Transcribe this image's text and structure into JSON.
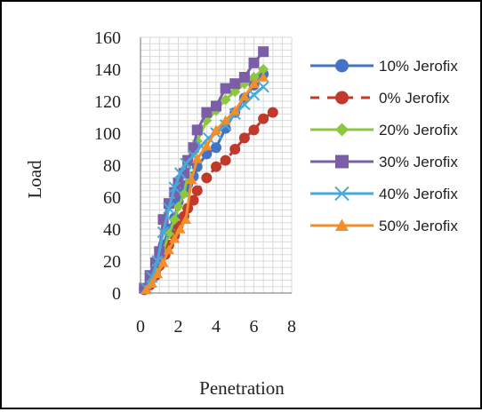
{
  "chart_data": {
    "type": "scatter",
    "xlabel": "Penetration",
    "ylabel": "Load",
    "xlim": [
      0,
      8
    ],
    "ylim": [
      0,
      160
    ],
    "x_ticks": [
      "0",
      "2",
      "4",
      "6",
      "8"
    ],
    "y_ticks": [
      "0",
      "20",
      "40",
      "60",
      "80",
      "100",
      "120",
      "140",
      "160"
    ],
    "grid": true,
    "legend_position": "right",
    "series": [
      {
        "name": "10% Jerofix",
        "color": "#4472C4",
        "marker": "circle",
        "line": "solid",
        "points": [
          [
            0.2,
            3
          ],
          [
            0.5,
            7
          ],
          [
            0.8,
            14
          ],
          [
            1.0,
            22
          ],
          [
            1.2,
            30
          ],
          [
            1.5,
            40
          ],
          [
            1.8,
            47
          ],
          [
            2.0,
            57
          ],
          [
            2.3,
            63
          ],
          [
            2.5,
            68
          ],
          [
            2.8,
            73
          ],
          [
            3.0,
            79
          ],
          [
            3.5,
            87
          ],
          [
            4.0,
            91
          ],
          [
            4.5,
            103
          ],
          [
            5.0,
            113
          ],
          [
            5.5,
            122
          ],
          [
            6.0,
            130
          ],
          [
            6.5,
            137
          ]
        ]
      },
      {
        "name": "0% Jerofix",
        "color": "#C0392B",
        "marker": "circle",
        "line": "dashed",
        "points": [
          [
            0.2,
            2
          ],
          [
            0.5,
            5
          ],
          [
            0.8,
            11
          ],
          [
            1.0,
            17
          ],
          [
            1.3,
            24
          ],
          [
            1.5,
            30
          ],
          [
            1.8,
            36
          ],
          [
            2.0,
            42
          ],
          [
            2.3,
            48
          ],
          [
            2.5,
            53
          ],
          [
            2.8,
            58
          ],
          [
            3.0,
            64
          ],
          [
            3.5,
            72
          ],
          [
            4.0,
            79
          ],
          [
            4.5,
            83
          ],
          [
            5.0,
            90
          ],
          [
            5.5,
            97
          ],
          [
            6.0,
            102
          ],
          [
            6.5,
            109
          ],
          [
            7.0,
            113
          ]
        ]
      },
      {
        "name": "20% Jerofix",
        "color": "#8DC63F",
        "marker": "diamond",
        "line": "solid",
        "points": [
          [
            0.3,
            3
          ],
          [
            0.6,
            8
          ],
          [
            0.9,
            16
          ],
          [
            1.2,
            26
          ],
          [
            1.5,
            37
          ],
          [
            1.8,
            46
          ],
          [
            2.0,
            54
          ],
          [
            2.3,
            62
          ],
          [
            2.5,
            74
          ],
          [
            2.8,
            88
          ],
          [
            3.0,
            95
          ],
          [
            3.5,
            108
          ],
          [
            4.0,
            114
          ],
          [
            4.5,
            121
          ],
          [
            5.0,
            126
          ],
          [
            5.5,
            131
          ],
          [
            6.0,
            135
          ],
          [
            6.5,
            140
          ]
        ]
      },
      {
        "name": "30% Jerofix",
        "color": "#7B5EA7",
        "marker": "square",
        "line": "solid",
        "points": [
          [
            0.2,
            3
          ],
          [
            0.5,
            11
          ],
          [
            0.8,
            19
          ],
          [
            1.0,
            26
          ],
          [
            1.2,
            46
          ],
          [
            1.5,
            56
          ],
          [
            1.8,
            63
          ],
          [
            2.0,
            69
          ],
          [
            2.3,
            75
          ],
          [
            2.5,
            83
          ],
          [
            2.8,
            91
          ],
          [
            3.0,
            102
          ],
          [
            3.5,
            113
          ],
          [
            4.0,
            117
          ],
          [
            4.5,
            128
          ],
          [
            5.0,
            131
          ],
          [
            5.5,
            135
          ],
          [
            6.0,
            144
          ],
          [
            6.5,
            151
          ]
        ]
      },
      {
        "name": "40% Jerofix",
        "color": "#45A9D9",
        "marker": "x",
        "line": "solid",
        "points": [
          [
            0.3,
            3
          ],
          [
            0.6,
            10
          ],
          [
            0.9,
            20
          ],
          [
            1.2,
            38
          ],
          [
            1.5,
            53
          ],
          [
            1.8,
            66
          ],
          [
            2.1,
            75
          ],
          [
            2.4,
            81
          ],
          [
            2.8,
            86
          ],
          [
            3.2,
            92
          ],
          [
            3.6,
            97
          ],
          [
            4.0,
            100
          ],
          [
            4.5,
            105
          ],
          [
            5.0,
            112
          ],
          [
            5.5,
            118
          ],
          [
            6.0,
            124
          ],
          [
            6.5,
            129
          ]
        ]
      },
      {
        "name": "50% Jerofix",
        "color": "#F28E2B",
        "marker": "triangle",
        "line": "solid",
        "points": [
          [
            0.3,
            2
          ],
          [
            0.6,
            6
          ],
          [
            0.9,
            12
          ],
          [
            1.2,
            19
          ],
          [
            1.5,
            27
          ],
          [
            1.8,
            34
          ],
          [
            2.1,
            40
          ],
          [
            2.4,
            46
          ],
          [
            2.7,
            71
          ],
          [
            3.0,
            84
          ],
          [
            3.5,
            92
          ],
          [
            4.0,
            102
          ],
          [
            4.5,
            108
          ],
          [
            5.0,
            114
          ],
          [
            5.5,
            123
          ],
          [
            6.0,
            131
          ],
          [
            6.5,
            135
          ]
        ]
      }
    ]
  }
}
